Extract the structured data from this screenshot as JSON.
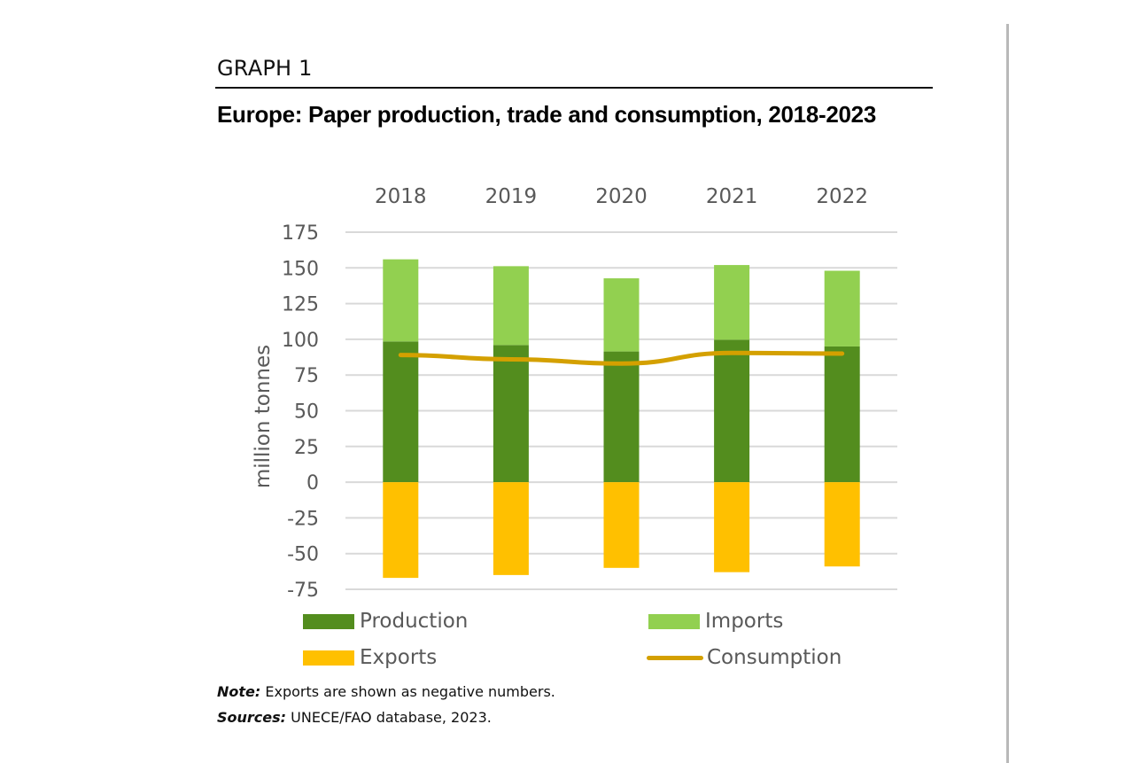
{
  "graph_label": "GRAPH 1",
  "title": "Europe: Paper production, trade and consumption, 2018-2023",
  "chart_data": {
    "type": "bar",
    "subtype": "stacked bar with line overlay",
    "title": "Europe: Paper production, trade and consumption, 2018-2023",
    "categories": [
      "2018",
      "2019",
      "2020",
      "2021",
      "2022"
    ],
    "category_axis_position": "top",
    "xlabel": "",
    "ylabel": "million tonnes",
    "ylim": [
      -75,
      175
    ],
    "yticks": [
      "175",
      "150",
      "125",
      "100",
      "75",
      "50",
      "25",
      "0",
      "-25",
      "-50",
      "-75"
    ],
    "grid": true,
    "legend_position": "bottom",
    "series": [
      {
        "name": "Production",
        "type": "bar",
        "stack": "pos",
        "color": "#538d1e",
        "values": [
          98.5,
          96,
          91.5,
          99.7,
          95
        ]
      },
      {
        "name": "Imports",
        "type": "bar",
        "stack": "pos",
        "color": "#92d050",
        "values": [
          57.5,
          55.2,
          51.2,
          52.3,
          53
        ]
      },
      {
        "name": "Exports",
        "type": "bar",
        "stack": "neg",
        "color": "#ffc000",
        "values": [
          -67,
          -65,
          -60,
          -63,
          -59
        ]
      },
      {
        "name": "Consumption",
        "type": "line",
        "color": "#d4a000",
        "values": [
          89,
          86,
          83,
          90.5,
          90
        ]
      }
    ]
  },
  "legend": [
    {
      "label": "Production",
      "kind": "box",
      "color": "#538d1e"
    },
    {
      "label": "Imports",
      "kind": "box",
      "color": "#92d050"
    },
    {
      "label": "Exports",
      "kind": "box",
      "color": "#ffc000"
    },
    {
      "label": "Consumption",
      "kind": "line",
      "color": "#d4a000"
    }
  ],
  "note": {
    "label": "Note:",
    "text": " Exports are shown as negative numbers."
  },
  "sources": {
    "label": "Sources:",
    "text": " UNECE/FAO database, 2023."
  }
}
